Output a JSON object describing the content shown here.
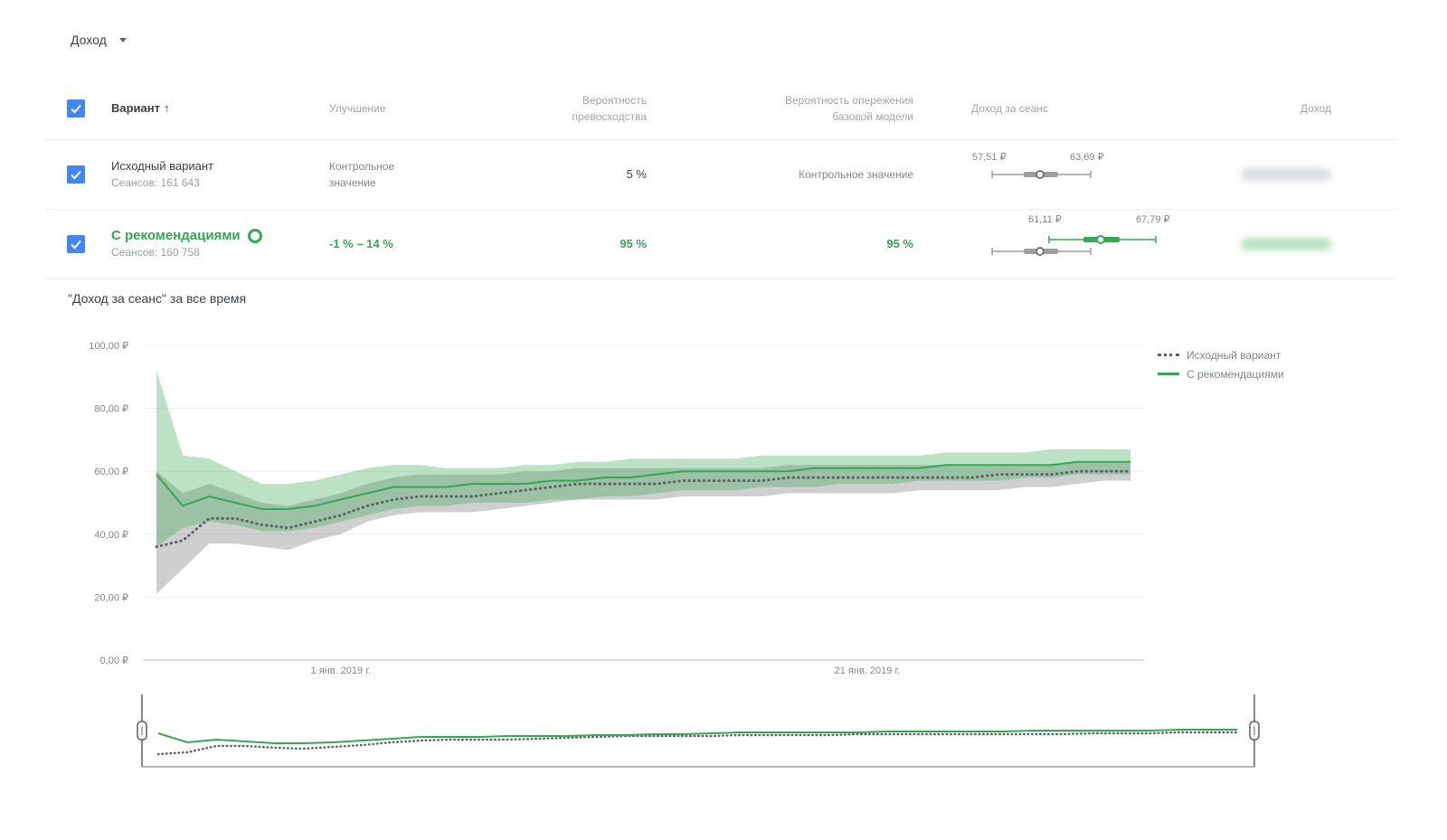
{
  "metric_select": {
    "label": "Доход"
  },
  "table": {
    "headers": {
      "variant": "Вариант",
      "improvement": "Улучшение",
      "prob_best_line1": "Вероятность",
      "prob_best_line2": "превосходства",
      "prob_beat_line1": "Вероятность опережения",
      "prob_beat_line2": "базовой модели",
      "revenue_per_session": "Доход за сеанс",
      "revenue": "Доход"
    },
    "rows": [
      {
        "name": "Исходный вариант",
        "sessions": "Сеансов: 161 643",
        "improvement_line1": "Контрольное",
        "improvement_line2": "значение",
        "prob_best": "5 %",
        "prob_beat": "Контрольное значение",
        "range_low": "57,51 ₽",
        "range_high": "63,69 ₽"
      },
      {
        "name": "С рекомендациями",
        "sessions": "Сеансов: 160 758",
        "improvement": "-1 % – 14 %",
        "prob_best": "95 %",
        "prob_beat": "95 %",
        "range_low": "61,11 ₽",
        "range_high": "67,79 ₽"
      }
    ]
  },
  "chart_title": "\"Доход за сеанс\" за все время",
  "legend": [
    "Исходный вариант",
    "С рекомендациями"
  ],
  "colors": {
    "green": "#34a853",
    "gray_line": "#5f6368",
    "blue_checkbox": "#4285f4"
  },
  "chart_data": {
    "type": "line",
    "y_ticks": [
      "100,00 ₽",
      "80,00 ₽",
      "60,00 ₽",
      "40,00 ₽",
      "20,00 ₽",
      "0,00 ₽"
    ],
    "ylim": [
      0,
      100
    ],
    "x_ticks": [
      "1 янв. 2019 г.",
      "21 янв. 2019 г."
    ],
    "x_range_days": [
      -7,
      30
    ],
    "x_tick_days": [
      0,
      20
    ],
    "x_days": [
      -7,
      -6,
      -5,
      -4,
      -3,
      -2,
      -1,
      0,
      1,
      2,
      3,
      4,
      5,
      6,
      7,
      8,
      9,
      10,
      11,
      12,
      13,
      14,
      15,
      16,
      17,
      18,
      19,
      20,
      21,
      22,
      23,
      24,
      25,
      26,
      27,
      28,
      29,
      30
    ],
    "series": [
      {
        "name": "Исходный вариант",
        "values": [
          36,
          38,
          45,
          45,
          43,
          42,
          44,
          46,
          49,
          51,
          52,
          52,
          52,
          53,
          54,
          55,
          56,
          56,
          56,
          56,
          57,
          57,
          57,
          57,
          58,
          58,
          58,
          58,
          58,
          58,
          58,
          58,
          59,
          59,
          59,
          60,
          60,
          60
        ],
        "lower": [
          21,
          29,
          37,
          37,
          36,
          35,
          38,
          40,
          44,
          46,
          47,
          47,
          47,
          48,
          49,
          50,
          51,
          51,
          51,
          51,
          52,
          52,
          52,
          52,
          53,
          53,
          53,
          53,
          53,
          54,
          54,
          54,
          54,
          55,
          55,
          56,
          57,
          57
        ],
        "upper": [
          60,
          53,
          56,
          53,
          50,
          49,
          51,
          53,
          56,
          58,
          59,
          59,
          59,
          59,
          60,
          60,
          61,
          61,
          61,
          61,
          61,
          61,
          61,
          61,
          62,
          62,
          62,
          62,
          62,
          62,
          62,
          62,
          62,
          62,
          62,
          63,
          63,
          63
        ]
      },
      {
        "name": "С рекомендациями",
        "values": [
          59,
          49,
          52,
          50,
          48,
          48,
          49,
          51,
          53,
          55,
          55,
          55,
          56,
          56,
          56,
          57,
          57,
          58,
          58,
          59,
          60,
          60,
          60,
          60,
          60,
          61,
          61,
          61,
          61,
          61,
          62,
          62,
          62,
          62,
          62,
          63,
          63,
          63
        ],
        "lower": [
          36,
          42,
          44,
          43,
          41,
          41,
          42,
          44,
          46,
          48,
          49,
          49,
          50,
          50,
          50,
          51,
          51,
          52,
          52,
          53,
          54,
          54,
          54,
          55,
          55,
          55,
          56,
          56,
          56,
          57,
          57,
          57,
          57,
          58,
          58,
          59,
          59,
          59
        ],
        "upper": [
          92,
          65,
          64,
          60,
          56,
          56,
          57,
          59,
          61,
          62,
          62,
          61,
          61,
          61,
          62,
          62,
          63,
          63,
          64,
          64,
          64,
          64,
          64,
          65,
          65,
          65,
          65,
          65,
          65,
          65,
          66,
          66,
          66,
          66,
          67,
          67,
          67,
          67
        ]
      }
    ]
  }
}
